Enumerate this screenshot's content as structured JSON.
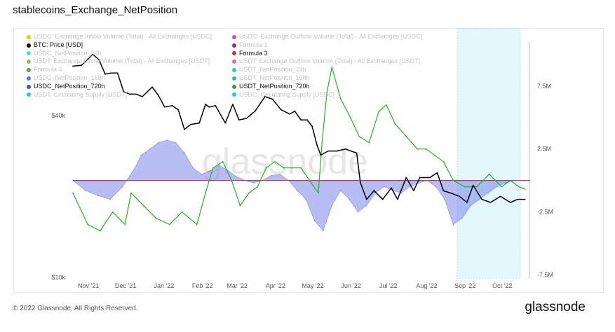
{
  "title": "stablecoins_Exchange_NetPosition",
  "footer": "© 2022 Glassnode. All Rights Reserved.",
  "brand": "glassnode",
  "watermark": "glassnode",
  "colors": {
    "btc": "#000000",
    "usdt_np": "#22b422",
    "usdc_np": "#4b5be6",
    "usdc_fill": "#7b87ea",
    "zero_line": "#c2305c",
    "highlight": "#d8f3fb"
  },
  "legend": {
    "left": [
      {
        "label": "USDC: Exchange Inflow Volume (Total) - All Exchanges [USDC]",
        "color": "#f2c300",
        "active": false
      },
      {
        "label": "BTC: Price [USD]",
        "color": "#000000",
        "active": true
      },
      {
        "label": "USDC_NetPosition_24h",
        "color": "#55d6c0",
        "active": false
      },
      {
        "label": "USDT: Exchange Inflow Volume (Total) - All Exchanges [USDT]",
        "color": "#8bc34a",
        "active": false
      },
      {
        "label": "Formula 4",
        "color": "#4caf50",
        "active": false
      },
      {
        "label": "USDC_NetPosition_168h",
        "color": "#5b7bd5",
        "active": false
      },
      {
        "label": "USDC_NetPosition_720h",
        "color": "#3f51d6",
        "active": true
      },
      {
        "label": "USDT: Circulating Supply [USDT]",
        "color": "#29c5e6",
        "active": false
      }
    ],
    "right": [
      {
        "label": "USDC: Exchange Outflow Volume (Total) - All Exchanges [USDC]",
        "color": "#b94fd9",
        "active": false
      },
      {
        "label": "Formula 1",
        "color": "#a3238e",
        "active": false
      },
      {
        "label": "Formula 3",
        "color": "#d32f2f",
        "active": true
      },
      {
        "label": "USDT: Exchange Outflow Volume (Total) - All Exchanges [USDT]",
        "color": "#e57373",
        "active": false
      },
      {
        "label": "USDT_NetPosition_24h",
        "color": "#26c6da",
        "active": false
      },
      {
        "label": "USDT_NetPosition_168h",
        "color": "#2bb0c9",
        "active": false
      },
      {
        "label": "USDT_NetPosition_720h",
        "color": "#2e9e3e",
        "active": true
      },
      {
        "label": "USDC: Circulating Supply [USDC]",
        "color": "#26c6da",
        "active": false
      }
    ]
  },
  "chart_data": {
    "type": "line",
    "x_ticks": [
      "Nov '21",
      "Dec '21",
      "Jan '22",
      "Feb '22",
      "Mar '22",
      "Apr '22",
      "May '22",
      "Jun '22",
      "Jul '22",
      "Aug '22",
      "Sep '22",
      "Oct '22"
    ],
    "y_left": {
      "scale": "log",
      "ticks": [
        "$10k",
        "$40k"
      ],
      "tick_values": [
        10000,
        40000
      ],
      "range": [
        10000,
        75000
      ]
    },
    "y_right": {
      "ticks": [
        "7.5M",
        "2.5M",
        "-2.5M",
        "-7.5M"
      ],
      "tick_values": [
        7500000,
        2500000,
        -2500000,
        -7500000
      ],
      "range": [
        -7700000,
        11000000
      ]
    },
    "highlight_region": [
      "2022-08-30",
      "2022-10-20"
    ],
    "x_range": [
      "2021-10-24",
      "2022-10-28"
    ],
    "zero_line": 0,
    "series": [
      {
        "name": "BTC: Price [USD]",
        "axis": "left",
        "style": "line",
        "points": [
          [
            "2021-10-24",
            61000
          ],
          [
            "2021-10-31",
            61500
          ],
          [
            "2021-11-09",
            67500
          ],
          [
            "2021-11-14",
            64500
          ],
          [
            "2021-11-19",
            57000
          ],
          [
            "2021-11-24",
            57500
          ],
          [
            "2021-11-29",
            57500
          ],
          [
            "2021-12-04",
            49000
          ],
          [
            "2021-12-09",
            48000
          ],
          [
            "2021-12-14",
            48000
          ],
          [
            "2021-12-19",
            47000
          ],
          [
            "2021-12-27",
            51000
          ],
          [
            "2022-01-01",
            47500
          ],
          [
            "2022-01-06",
            43000
          ],
          [
            "2022-01-12",
            43500
          ],
          [
            "2022-01-17",
            42000
          ],
          [
            "2022-01-22",
            35500
          ],
          [
            "2022-01-27",
            37000
          ],
          [
            "2022-02-03",
            37500
          ],
          [
            "2022-02-08",
            44000
          ],
          [
            "2022-02-11",
            43000
          ],
          [
            "2022-02-16",
            43500
          ],
          [
            "2022-02-24",
            37500
          ],
          [
            "2022-03-02",
            44000
          ],
          [
            "2022-03-07",
            38500
          ],
          [
            "2022-03-13",
            39000
          ],
          [
            "2022-03-20",
            41500
          ],
          [
            "2022-03-28",
            47000
          ],
          [
            "2022-04-03",
            46000
          ],
          [
            "2022-04-10",
            42000
          ],
          [
            "2022-04-17",
            40500
          ],
          [
            "2022-04-21",
            41500
          ],
          [
            "2022-04-26",
            38500
          ],
          [
            "2022-05-01",
            38500
          ],
          [
            "2022-05-05",
            36500
          ],
          [
            "2022-05-09",
            31000
          ],
          [
            "2022-05-12",
            28500
          ],
          [
            "2022-05-18",
            29500
          ],
          [
            "2022-05-25",
            29500
          ],
          [
            "2022-06-01",
            30000
          ],
          [
            "2022-06-10",
            29000
          ],
          [
            "2022-06-13",
            22500
          ],
          [
            "2022-06-18",
            19500
          ],
          [
            "2022-06-24",
            21000
          ],
          [
            "2022-07-01",
            19500
          ],
          [
            "2022-07-08",
            21500
          ],
          [
            "2022-07-13",
            19500
          ],
          [
            "2022-07-20",
            23500
          ],
          [
            "2022-07-26",
            21000
          ],
          [
            "2022-07-31",
            23500
          ],
          [
            "2022-08-08",
            23500
          ],
          [
            "2022-08-14",
            24500
          ],
          [
            "2022-08-19",
            21000
          ],
          [
            "2022-08-26",
            20500
          ],
          [
            "2022-09-01",
            20000
          ],
          [
            "2022-09-07",
            19000
          ],
          [
            "2022-09-12",
            22000
          ],
          [
            "2022-09-19",
            19500
          ],
          [
            "2022-09-26",
            19000
          ],
          [
            "2022-10-04",
            20000
          ],
          [
            "2022-10-12",
            19000
          ],
          [
            "2022-10-18",
            19500
          ],
          [
            "2022-10-24",
            19500
          ]
        ]
      },
      {
        "name": "USDT_NetPosition_720h",
        "axis": "right",
        "style": "line",
        "points": [
          [
            "2021-10-24",
            -1000000
          ],
          [
            "2021-11-05",
            -3500000
          ],
          [
            "2021-11-15",
            -4000000
          ],
          [
            "2021-11-25",
            -2500000
          ],
          [
            "2021-12-05",
            -3500000
          ],
          [
            "2021-12-10",
            -1000000
          ],
          [
            "2021-12-20",
            -2000000
          ],
          [
            "2021-12-30",
            -3000000
          ],
          [
            "2022-01-10",
            -3500000
          ],
          [
            "2022-01-20",
            -2500000
          ],
          [
            "2022-02-01",
            -3500000
          ],
          [
            "2022-02-08",
            -1000000
          ],
          [
            "2022-02-14",
            1000000
          ],
          [
            "2022-02-22",
            1500000
          ],
          [
            "2022-03-01",
            0
          ],
          [
            "2022-03-08",
            -2000000
          ],
          [
            "2022-03-15",
            -1000000
          ],
          [
            "2022-03-22",
            -500000
          ],
          [
            "2022-03-29",
            1000000
          ],
          [
            "2022-04-05",
            1500000
          ],
          [
            "2022-04-12",
            1000000
          ],
          [
            "2022-04-19",
            1000000
          ],
          [
            "2022-04-26",
            1000000
          ],
          [
            "2022-05-03",
            0
          ],
          [
            "2022-05-10",
            -1000000
          ],
          [
            "2022-05-13",
            3000000
          ],
          [
            "2022-05-17",
            7000000
          ],
          [
            "2022-05-21",
            9000000
          ],
          [
            "2022-05-28",
            6500000
          ],
          [
            "2022-06-05",
            5000000
          ],
          [
            "2022-06-12",
            3500000
          ],
          [
            "2022-06-20",
            3000000
          ],
          [
            "2022-06-28",
            5500000
          ],
          [
            "2022-07-04",
            6000000
          ],
          [
            "2022-07-11",
            4500000
          ],
          [
            "2022-07-20",
            3500000
          ],
          [
            "2022-07-29",
            2500000
          ],
          [
            "2022-08-05",
            2500000
          ],
          [
            "2022-08-12",
            2000000
          ],
          [
            "2022-08-19",
            1500000
          ],
          [
            "2022-08-27",
            0
          ],
          [
            "2022-09-05",
            -500000
          ],
          [
            "2022-09-15",
            -500000
          ],
          [
            "2022-09-25",
            500000
          ],
          [
            "2022-10-05",
            -500000
          ],
          [
            "2022-10-12",
            0
          ],
          [
            "2022-10-19",
            -500000
          ],
          [
            "2022-10-24",
            -700000
          ]
        ]
      },
      {
        "name": "USDC_NetPosition_720h",
        "axis": "right",
        "style": "area",
        "points": [
          [
            "2021-10-24",
            0
          ],
          [
            "2021-11-03",
            -800000
          ],
          [
            "2021-11-13",
            -1200000
          ],
          [
            "2021-11-23",
            -1500000
          ],
          [
            "2021-12-03",
            -500000
          ],
          [
            "2021-12-13",
            1000000
          ],
          [
            "2021-12-18",
            2000000
          ],
          [
            "2021-12-25",
            2500000
          ],
          [
            "2022-01-01",
            3000000
          ],
          [
            "2022-01-08",
            3200000
          ],
          [
            "2022-01-15",
            3000000
          ],
          [
            "2022-01-22",
            2200000
          ],
          [
            "2022-01-29",
            1000000
          ],
          [
            "2022-02-05",
            500000
          ],
          [
            "2022-02-12",
            800000
          ],
          [
            "2022-02-19",
            1200000
          ],
          [
            "2022-02-26",
            800000
          ],
          [
            "2022-03-05",
            300000
          ],
          [
            "2022-03-12",
            0
          ],
          [
            "2022-03-19",
            -200000
          ],
          [
            "2022-03-26",
            0
          ],
          [
            "2022-04-02",
            400000
          ],
          [
            "2022-04-09",
            500000
          ],
          [
            "2022-04-16",
            0
          ],
          [
            "2022-04-23",
            -800000
          ],
          [
            "2022-04-30",
            -1500000
          ],
          [
            "2022-05-07",
            -3200000
          ],
          [
            "2022-05-14",
            -4000000
          ],
          [
            "2022-05-21",
            -2000000
          ],
          [
            "2022-05-28",
            -800000
          ],
          [
            "2022-06-04",
            -1500000
          ],
          [
            "2022-06-11",
            -2500000
          ],
          [
            "2022-06-18",
            -2000000
          ],
          [
            "2022-06-25",
            -1000000
          ],
          [
            "2022-07-02",
            -500000
          ],
          [
            "2022-07-09",
            -800000
          ],
          [
            "2022-07-16",
            -1000000
          ],
          [
            "2022-07-23",
            -500000
          ],
          [
            "2022-07-30",
            -200000
          ],
          [
            "2022-08-06",
            0
          ],
          [
            "2022-08-13",
            -500000
          ],
          [
            "2022-08-20",
            -1500000
          ],
          [
            "2022-08-27",
            -3500000
          ],
          [
            "2022-09-03",
            -3000000
          ],
          [
            "2022-09-10",
            -2000000
          ],
          [
            "2022-09-17",
            -1500000
          ],
          [
            "2022-09-24",
            -1000000
          ],
          [
            "2022-10-01",
            -500000
          ],
          [
            "2022-10-08",
            -200000
          ],
          [
            "2022-10-15",
            0
          ],
          [
            "2022-10-22",
            0
          ]
        ]
      }
    ]
  }
}
